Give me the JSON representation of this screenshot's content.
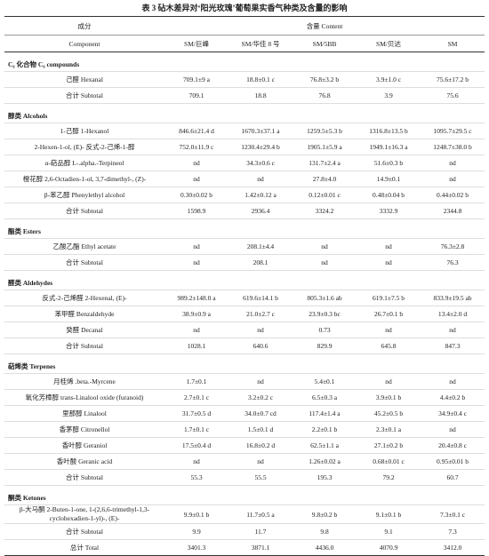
{
  "title": "表 3 砧木差异对‘阳光玫瑰’葡萄果实香气种类及含量的影响",
  "header": {
    "component_cn": "成分",
    "component_en": "Component",
    "content": "含量 Content",
    "columns": [
      "SM/巨峰",
      "SM/华佳 8 号",
      "SM/5BB",
      "SM/贝达",
      "SM"
    ]
  },
  "sections": [
    {
      "title": "C₆ 化合物 C₆ compounds",
      "rows": [
        [
          "己醛 Hexanal",
          "709.1±9 a",
          "18.8±0.1 c",
          "76.8±3.2 b",
          "3.9±1.0 c",
          "75.6±17.2 b"
        ]
      ],
      "subtotal": [
        "合计 Subtotal",
        "709.1",
        "18.8",
        "76.8",
        "3.9",
        "75.6"
      ]
    },
    {
      "title": "醇类 Alcohols",
      "rows": [
        [
          "1-己醇 1-Hexanol",
          "846.6±21.4 d",
          "1670.3±37.1 a",
          "1259.5±5.3 b",
          "1316.8±13.5 b",
          "1095.7±29.5 c"
        ],
        [
          "2-Hexen-1-ol, (E)- 反式-2-己烯-1-醇",
          "752.0±11.9 c",
          "1230.4±29.4 b",
          "1905.1±5.9 a",
          "1949.1±16.3 a",
          "1248.7±38.0 b"
        ],
        [
          "α-萜品醇 L-.alpha.-Terpineol",
          "nd",
          "34.3±0.6 c",
          "131.7±2.4 a",
          "51.6±0.3 b",
          "nd"
        ],
        [
          "橙花醇 2,6-Octadien-1-ol, 3,7-dimethyl-, (Z)-",
          "nd",
          "nd",
          "27.8±4.0",
          "14.9±0.1",
          "nd"
        ],
        [
          "β-苯乙醇 Phenylethyl alcohol",
          "0.30±0.02 b",
          "1.42±0.12 a",
          "0.12±0.01 c",
          "0.48±0.04 b",
          "0.44±0.02 b"
        ]
      ],
      "subtotal": [
        "合计 Subtotal",
        "1598.9",
        "2936.4",
        "3324.2",
        "3332.9",
        "2344.8"
      ]
    },
    {
      "title": "酯类 Esters",
      "rows": [
        [
          "乙酸乙酯 Ethyl acetate",
          "nd",
          "208.1±4.4",
          "nd",
          "nd",
          "76.3±2.8"
        ]
      ],
      "subtotal": [
        "合计 Subtotal",
        "nd",
        "208.1",
        "nd",
        "nd",
        "76.3"
      ]
    },
    {
      "title": "醛类 Aldehydes",
      "rows": [
        [
          "反式-2-己烯醛 2-Hexenal, (E)-",
          "989.2±148.0 a",
          "619.6±14.1 b",
          "805.3±1.6 ab",
          "619.1±7.5 b",
          "833.9±19.5 ab"
        ],
        [
          "苯甲醛 Benzaldehyde",
          "38.9±0.9 a",
          "21.0±2.7 c",
          "23.9±0.3 bc",
          "26.7±0.1 b",
          "13.4±2.0 d"
        ],
        [
          "癸醛 Decanal",
          "nd",
          "nd",
          "0.73",
          "nd",
          "nd"
        ]
      ],
      "subtotal": [
        "合计 Subtotal",
        "1028.1",
        "640.6",
        "829.9",
        "645.8",
        "847.3"
      ]
    },
    {
      "title": "萜烯类 Terpenes",
      "rows": [
        [
          "月桂烯 .beta.-Myrcene",
          "1.7±0.1",
          "nd",
          "5.4±0.1",
          "nd",
          "nd"
        ],
        [
          "氧化芳樟醇 trans-Linalool oxide (furanoid)",
          "2.7±0.1 c",
          "3.2±0.2 c",
          "6.5±0.3 a",
          "3.9±0.1 b",
          "4.4±0.2 b"
        ],
        [
          "里那醇 Linalool",
          "31.7±0.5 d",
          "34.0±0.7 cd",
          "117.4±1.4 a",
          "45.2±0.5 b",
          "34.9±0.4 c"
        ],
        [
          "香茅醇 Citronellol",
          "1.7±0.1 c",
          "1.5±0.1 d",
          "2.2±0.1 b",
          "2.3±0.1 a",
          "nd"
        ],
        [
          "香叶醇 Geraniol",
          "17.5±0.4 d",
          "16.8±0.2 d",
          "62.5±1.1 a",
          "27.1±0.2 b",
          "20.4±0.8 c"
        ],
        [
          "香叶酸 Geranic acid",
          "nd",
          "nd",
          "1.26±0.02 a",
          "0.68±0.01 c",
          "0.95±0.01 b"
        ]
      ],
      "subtotal": [
        "合计 Subtotal",
        "55.3",
        "55.5",
        "195.3",
        "79.2",
        "60.7"
      ]
    },
    {
      "title": "酮类 Ketones",
      "rows": [
        [
          "β-大马酮 2-Buten-1-one, 1-(2,6,6-trimethyl-1,3-cyclohexadien-1-yl)-, (E)-",
          "9.9±0.1 b",
          "11.7±0.5 a",
          "9.8±0.2 b",
          "9.1±0.1 b",
          "7.3±0.1 c"
        ]
      ],
      "subtotal": [
        "合计 Subtotal",
        "9.9",
        "11.7",
        "9.8",
        "9.1",
        "7.3"
      ]
    }
  ],
  "total": [
    "总计 Total",
    "3401.3",
    "3871.1",
    "4436.0",
    "4070.9",
    "3412.0"
  ]
}
